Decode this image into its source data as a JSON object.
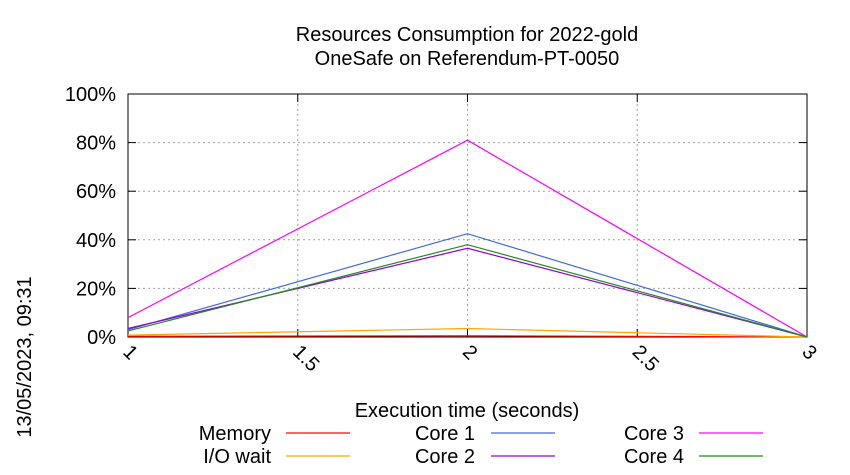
{
  "chart_data": {
    "type": "line",
    "title": "Resources Consumption for 2022-gold",
    "subtitle": "OneSafe on Referendum-PT-0050",
    "xlabel": "Execution time (seconds)",
    "ylabel": "",
    "side_label": "13/05/2023, 09:31",
    "x": [
      1,
      2,
      3
    ],
    "xlim": [
      1,
      3
    ],
    "ylim": [
      0,
      100
    ],
    "x_ticks": [
      1,
      1.5,
      2,
      2.5,
      3
    ],
    "x_tick_labels": [
      "1",
      "1.5",
      "2",
      "2.5",
      "3"
    ],
    "y_ticks": [
      0,
      20,
      40,
      60,
      80,
      100
    ],
    "y_tick_labels": [
      "0%",
      "20%",
      "40%",
      "60%",
      "80%",
      "100%"
    ],
    "grid": true,
    "legend_position": "bottom",
    "series": [
      {
        "name": "Memory",
        "color": "#ff0000",
        "values": [
          0.3,
          0.5,
          0
        ]
      },
      {
        "name": "I/O wait",
        "color": "#ffa500",
        "values": [
          0.8,
          3.5,
          0
        ]
      },
      {
        "name": "Core 1",
        "color": "#4169e1",
        "values": [
          3,
          42.5,
          0
        ]
      },
      {
        "name": "Core 2",
        "color": "#9400d3",
        "values": [
          3.5,
          36.5,
          0
        ]
      },
      {
        "name": "Core 3",
        "color": "#ff00ff",
        "values": [
          8,
          81,
          0
        ]
      },
      {
        "name": "Core 4",
        "color": "#228b22",
        "values": [
          2.5,
          38,
          0
        ]
      }
    ]
  }
}
